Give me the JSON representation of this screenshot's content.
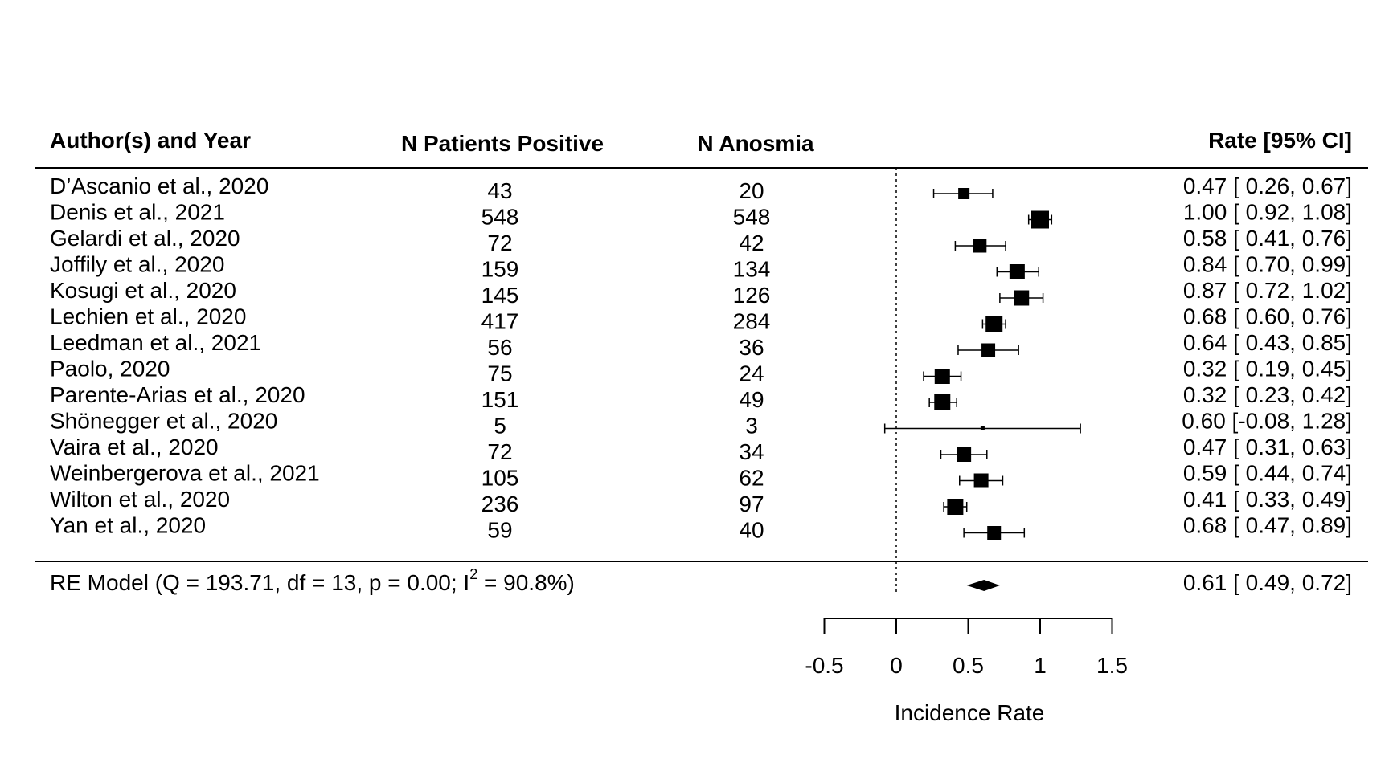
{
  "chart_data": {
    "type": "forest",
    "headers": {
      "study": "Author(s) and Year",
      "n_positive": "N Patients Positive",
      "n_anosmia": "N Anosmia",
      "rate": "Rate [95% CI]"
    },
    "studies": [
      {
        "name": "D’Ascanio et al., 2020",
        "n_positive": "43",
        "n_anosmia": "20",
        "est": 0.47,
        "lo": 0.26,
        "hi": 0.67,
        "rate_text": "0.47 [ 0.26, 0.67]",
        "weight": 14
      },
      {
        "name": "Denis et al., 2021",
        "n_positive": "548",
        "n_anosmia": "548",
        "est": 1.0,
        "lo": 0.92,
        "hi": 1.08,
        "rate_text": "1.00 [ 0.92, 1.08]",
        "weight": 22
      },
      {
        "name": "Gelardi et al., 2020",
        "n_positive": "72",
        "n_anosmia": "42",
        "est": 0.58,
        "lo": 0.41,
        "hi": 0.76,
        "rate_text": "0.58 [ 0.41, 0.76]",
        "weight": 17
      },
      {
        "name": "Joffily et al., 2020",
        "n_positive": "159",
        "n_anosmia": "134",
        "est": 0.84,
        "lo": 0.7,
        "hi": 0.99,
        "rate_text": "0.84 [ 0.70, 0.99]",
        "weight": 19
      },
      {
        "name": "Kosugi et al., 2020",
        "n_positive": "145",
        "n_anosmia": "126",
        "est": 0.87,
        "lo": 0.72,
        "hi": 1.02,
        "rate_text": "0.87 [ 0.72, 1.02]",
        "weight": 19
      },
      {
        "name": "Lechien et al., 2020",
        "n_positive": "417",
        "n_anosmia": "284",
        "est": 0.68,
        "lo": 0.6,
        "hi": 0.76,
        "rate_text": "0.68 [ 0.60, 0.76]",
        "weight": 21
      },
      {
        "name": "Leedman et al., 2021",
        "n_positive": "56",
        "n_anosmia": "36",
        "est": 0.64,
        "lo": 0.43,
        "hi": 0.85,
        "rate_text": "0.64 [ 0.43, 0.85]",
        "weight": 17
      },
      {
        "name": "Paolo, 2020",
        "n_positive": "75",
        "n_anosmia": "24",
        "est": 0.32,
        "lo": 0.19,
        "hi": 0.45,
        "rate_text": "0.32 [ 0.19, 0.45]",
        "weight": 19
      },
      {
        "name": "Parente-Arias et al., 2020",
        "n_positive": "151",
        "n_anosmia": "49",
        "est": 0.32,
        "lo": 0.23,
        "hi": 0.42,
        "rate_text": "0.32 [ 0.23, 0.42]",
        "weight": 20
      },
      {
        "name": "Shönegger et al., 2020",
        "n_positive": "5",
        "n_anosmia": "3",
        "est": 0.6,
        "lo": -0.08,
        "hi": 1.28,
        "rate_text": "0.60 [-0.08, 1.28]",
        "weight": 5
      },
      {
        "name": "Vaira et al., 2020",
        "n_positive": "72",
        "n_anosmia": "34",
        "est": 0.47,
        "lo": 0.31,
        "hi": 0.63,
        "rate_text": "0.47 [ 0.31, 0.63]",
        "weight": 18
      },
      {
        "name": "Weinbergerova et al., 2021",
        "n_positive": "105",
        "n_anosmia": "62",
        "est": 0.59,
        "lo": 0.44,
        "hi": 0.74,
        "rate_text": "0.59 [ 0.44, 0.74]",
        "weight": 18
      },
      {
        "name": "Wilton et al., 2020",
        "n_positive": "236",
        "n_anosmia": "97",
        "est": 0.41,
        "lo": 0.33,
        "hi": 0.49,
        "rate_text": "0.41 [ 0.33, 0.49]",
        "weight": 20
      },
      {
        "name": "Yan et al., 2020",
        "n_positive": "59",
        "n_anosmia": "40",
        "est": 0.68,
        "lo": 0.47,
        "hi": 0.89,
        "rate_text": "0.68 [ 0.47, 0.89]",
        "weight": 17
      }
    ],
    "summary": {
      "label_pre": "RE Model (Q = 193.71, df = 13, p = 0.00; I",
      "label_sup": "2",
      "label_post": " = 90.8%)",
      "est": 0.61,
      "lo": 0.49,
      "hi": 0.72,
      "rate_text": "0.61 [ 0.49, 0.72]"
    },
    "reference_line": 0,
    "xlim": [
      -0.5,
      1.5
    ],
    "x_ticks": [
      -0.5,
      0,
      0.5,
      1,
      1.5
    ],
    "x_tick_labels": [
      "-0.5",
      "0",
      "0.5",
      "1",
      "1.5"
    ],
    "xlabel": "Incidence Rate"
  }
}
